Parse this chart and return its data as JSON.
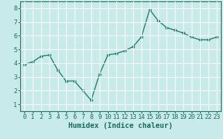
{
  "x": [
    0,
    1,
    2,
    3,
    4,
    5,
    6,
    7,
    8,
    9,
    10,
    11,
    12,
    13,
    14,
    15,
    16,
    17,
    18,
    19,
    20,
    21,
    22,
    23
  ],
  "y": [
    3.9,
    4.1,
    4.5,
    4.6,
    3.5,
    2.7,
    2.7,
    2.0,
    1.3,
    3.2,
    4.6,
    4.7,
    4.9,
    5.2,
    5.9,
    7.9,
    7.1,
    6.6,
    6.4,
    6.2,
    5.9,
    5.7,
    5.7,
    5.9
  ],
  "line_color": "#1a7a6a",
  "marker": "o",
  "marker_size": 2.5,
  "line_width": 1.0,
  "xlabel": "Humidex (Indice chaleur)",
  "ylim": [
    0.5,
    8.5
  ],
  "xlim": [
    -0.5,
    23.5
  ],
  "yticks": [
    1,
    2,
    3,
    4,
    5,
    6,
    7,
    8
  ],
  "xticks": [
    0,
    1,
    2,
    3,
    4,
    5,
    6,
    7,
    8,
    9,
    10,
    11,
    12,
    13,
    14,
    15,
    16,
    17,
    18,
    19,
    20,
    21,
    22,
    23
  ],
  "bg_color": "#c8eaea",
  "grid_color": "#ffffff",
  "axis_bg": "#c8eaea",
  "xlabel_fontsize": 7.5,
  "tick_fontsize": 6.5,
  "tick_color": "#1a6a5a",
  "spine_color": "#1a6a5a"
}
